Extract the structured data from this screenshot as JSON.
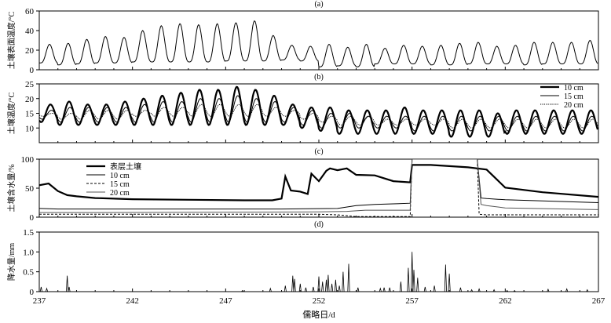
{
  "chart_data": [
    {
      "type": "line",
      "title": "(a)",
      "ylabel": "土壤表面温度/°C",
      "ylim": [
        0,
        60
      ],
      "yticks": [
        0,
        20,
        40,
        60
      ],
      "xlim": [
        237,
        267
      ],
      "series": [
        {
          "style": "thin",
          "daily_max": [
            26,
            27,
            31,
            34,
            33,
            40,
            45,
            47,
            46,
            47,
            48,
            50,
            35,
            25,
            24,
            26,
            23,
            26,
            22,
            25,
            24,
            25,
            27,
            28,
            24,
            25,
            28,
            28,
            28,
            30
          ],
          "daily_min": [
            7,
            5,
            6,
            7,
            7,
            8,
            8,
            8,
            8,
            8,
            9,
            9,
            9,
            10,
            9,
            3,
            4,
            3,
            6,
            6,
            6,
            5,
            5,
            6,
            6,
            6,
            5,
            6,
            6,
            6
          ]
        }
      ]
    },
    {
      "type": "line",
      "title": "(b)",
      "ylabel": "土壤温度/°C",
      "ylim": [
        5,
        25
      ],
      "yticks": [
        10,
        15,
        20,
        25
      ],
      "xlim": [
        237,
        267
      ],
      "legend_position": "top-right",
      "series": [
        {
          "name": "10 cm",
          "style": "thick",
          "daily_max": [
            18,
            19,
            18,
            18,
            19,
            20,
            21,
            22,
            23,
            23,
            24,
            23,
            21,
            18,
            17,
            17,
            16,
            16,
            16,
            17,
            16,
            16,
            16,
            16,
            15,
            16,
            16,
            16,
            16,
            16
          ],
          "daily_min": [
            12,
            11,
            11,
            11,
            11,
            11,
            11,
            11,
            11,
            11,
            11,
            11,
            11,
            11,
            10,
            9,
            8,
            8,
            8,
            8,
            8,
            8,
            7,
            7,
            7,
            8,
            8,
            8,
            8,
            8
          ]
        },
        {
          "name": "15 cm",
          "style": "thin",
          "daily_max": [
            16,
            17,
            17,
            17,
            17,
            18,
            19,
            19,
            20,
            20,
            21,
            20,
            19,
            17,
            16,
            15,
            15,
            14,
            14,
            14,
            14,
            14,
            14,
            14,
            14,
            14,
            14,
            14,
            14,
            14
          ],
          "daily_min": [
            13,
            12,
            12,
            12,
            12,
            12,
            12,
            12,
            12,
            12,
            12,
            12,
            12,
            12,
            11,
            10,
            10,
            10,
            10,
            10,
            9,
            9,
            9,
            9,
            9,
            9,
            9,
            9,
            9,
            9
          ]
        },
        {
          "name": "20 cm",
          "style": "dotted",
          "daily_max": [
            15,
            15,
            16,
            16,
            16,
            16,
            17,
            17,
            18,
            18,
            18,
            18,
            17,
            16,
            15,
            14,
            14,
            14,
            13,
            13,
            13,
            13,
            13,
            13,
            13,
            13,
            13,
            13,
            13,
            13
          ],
          "daily_min": [
            14,
            13,
            13,
            13,
            13,
            14,
            14,
            14,
            14,
            14,
            14,
            14,
            14,
            14,
            13,
            12,
            11,
            11,
            11,
            11,
            11,
            11,
            10,
            10,
            10,
            10,
            10,
            10,
            10,
            10
          ]
        }
      ]
    },
    {
      "type": "line",
      "title": "(c)",
      "ylabel": "土壤含水量/%",
      "ylim": [
        0,
        100
      ],
      "yticks": [
        0,
        50,
        100
      ],
      "xlim": [
        237,
        267
      ],
      "legend_position": "top-left",
      "series": [
        {
          "name": "表层土壤",
          "style": "thick",
          "x": [
            237,
            237.5,
            238,
            238.5,
            239,
            240,
            242,
            245,
            248,
            249.5,
            250,
            250.2,
            250.5,
            251,
            251.4,
            251.6,
            252,
            252.4,
            252.6,
            253,
            253.5,
            254,
            255,
            256,
            256.9,
            257,
            258,
            260,
            261,
            262,
            264,
            267
          ],
          "y": [
            55,
            58,
            45,
            38,
            36,
            33,
            31,
            30,
            29,
            29,
            32,
            70,
            46,
            44,
            40,
            75,
            62,
            80,
            84,
            81,
            84,
            73,
            72,
            62,
            60,
            90,
            90,
            86,
            82,
            51,
            43,
            35
          ]
        },
        {
          "name": "10 cm",
          "style": "thin",
          "x": [
            237,
            238,
            250,
            253,
            254,
            255,
            256,
            256.9,
            257,
            260.5,
            260.7,
            261,
            262,
            264,
            267
          ],
          "y": [
            15,
            14,
            14,
            15,
            20,
            22,
            23,
            24,
            100,
            100,
            33,
            32,
            30,
            28,
            25
          ]
        },
        {
          "name": "15 cm",
          "style": "dashed",
          "x": [
            237,
            240,
            252,
            253,
            254,
            254.5,
            256.9,
            257,
            260.5,
            260.6,
            261,
            262,
            267
          ],
          "y": [
            5,
            5,
            5,
            4,
            1,
            1,
            1,
            100,
            100,
            5,
            4,
            4,
            4
          ]
        },
        {
          "name": "20 cm",
          "style": "thin-grey",
          "x": [
            237,
            240,
            252,
            253.5,
            254.5,
            256,
            256.9,
            257,
            260.5,
            260.7,
            261,
            262,
            267
          ],
          "y": [
            8,
            8,
            9,
            10,
            12,
            12,
            12,
            100,
            100,
            22,
            20,
            16,
            13
          ]
        }
      ]
    },
    {
      "type": "bar",
      "title": "(d)",
      "ylabel": "降水量/mm",
      "xlabel": "儒略日/d",
      "ylim": [
        0,
        1.5
      ],
      "yticks": [
        0,
        0.5,
        1.0,
        1.5
      ],
      "xlim": [
        237,
        267
      ],
      "xticks": [
        237,
        242,
        247,
        252,
        257,
        262,
        267
      ],
      "x": [
        237.1,
        237.4,
        238.5,
        238.6,
        247.9,
        249.4,
        250.2,
        250.6,
        250.7,
        251,
        251.3,
        251.7,
        252,
        252.2,
        252.4,
        252.5,
        252.7,
        252.9,
        253.1,
        253.3,
        253.6,
        254.1,
        255.3,
        255.5,
        255.8,
        256.4,
        256.8,
        257,
        257.1,
        257.3,
        257.7,
        258.2,
        258.8,
        259,
        259.6,
        260.2,
        260.6,
        261.4,
        262.1,
        262.5,
        264.3,
        265.3,
        266.4
      ],
      "values": [
        0.12,
        0.08,
        0.4,
        0.12,
        0.03,
        0.08,
        0.15,
        0.4,
        0.32,
        0.2,
        0.1,
        0.12,
        0.38,
        0.25,
        0.3,
        0.42,
        0.2,
        0.3,
        0.15,
        0.5,
        0.7,
        0.1,
        0.08,
        0.1,
        0.1,
        0.25,
        0.6,
        1.0,
        0.55,
        0.35,
        0.12,
        0.15,
        0.68,
        0.45,
        0.1,
        0.05,
        0.07,
        0.05,
        0.03,
        0.03,
        0.06,
        0.07,
        0.05
      ]
    }
  ]
}
